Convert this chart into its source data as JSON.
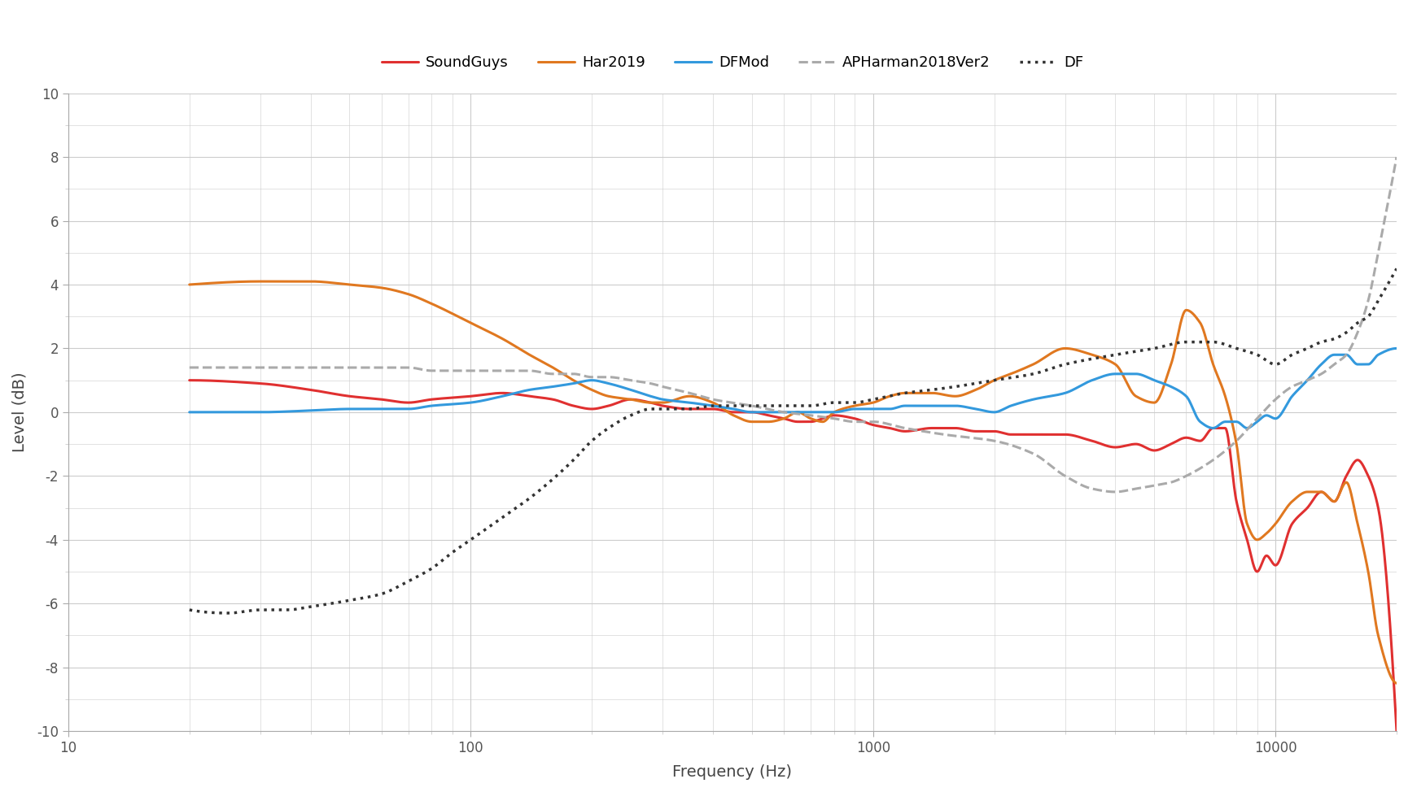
{
  "title": "",
  "xlabel": "Frequency (Hz)",
  "ylabel": "Level (dB)",
  "xlim": [
    10,
    20000
  ],
  "ylim": [
    -10,
    10
  ],
  "yticks": [
    -10,
    -8,
    -6,
    -4,
    -2,
    0,
    2,
    4,
    6,
    8,
    10
  ],
  "background_color": "#ffffff",
  "grid_color": "#cccccc",
  "SoundGuys": {
    "color": "#e03030",
    "linestyle": "-",
    "linewidth": 2.2,
    "freq": [
      20,
      30,
      40,
      50,
      60,
      70,
      80,
      100,
      120,
      140,
      160,
      180,
      200,
      220,
      250,
      280,
      300,
      350,
      400,
      450,
      500,
      550,
      600,
      650,
      700,
      750,
      800,
      900,
      1000,
      1100,
      1200,
      1400,
      1600,
      1800,
      2000,
      2200,
      2500,
      3000,
      3500,
      4000,
      4500,
      5000,
      5500,
      6000,
      6500,
      7000,
      7500,
      8000,
      8500,
      9000,
      9500,
      10000,
      11000,
      12000,
      13000,
      14000,
      15000,
      16000,
      17000,
      18000,
      20000
    ],
    "level": [
      1.0,
      0.9,
      0.7,
      0.5,
      0.4,
      0.3,
      0.4,
      0.5,
      0.6,
      0.5,
      0.4,
      0.2,
      0.1,
      0.2,
      0.4,
      0.3,
      0.2,
      0.1,
      0.1,
      0.0,
      0.0,
      -0.1,
      -0.2,
      -0.3,
      -0.3,
      -0.2,
      -0.1,
      -0.2,
      -0.4,
      -0.5,
      -0.6,
      -0.5,
      -0.5,
      -0.6,
      -0.6,
      -0.7,
      -0.7,
      -0.7,
      -0.9,
      -1.1,
      -1.0,
      -1.2,
      -1.0,
      -0.8,
      -0.9,
      -0.5,
      -0.5,
      -2.8,
      -4.0,
      -5.0,
      -4.5,
      -4.8,
      -3.5,
      -3.0,
      -2.5,
      -2.8,
      -2.0,
      -1.5,
      -2.0,
      -3.0,
      -10.0
    ]
  },
  "Har2019": {
    "color": "#e07820",
    "linestyle": "-",
    "linewidth": 2.2,
    "freq": [
      20,
      30,
      40,
      50,
      60,
      70,
      80,
      100,
      120,
      140,
      160,
      180,
      200,
      220,
      250,
      280,
      300,
      350,
      400,
      450,
      500,
      550,
      600,
      650,
      700,
      750,
      800,
      900,
      1000,
      1100,
      1200,
      1400,
      1600,
      1800,
      2000,
      2200,
      2500,
      3000,
      3500,
      4000,
      4500,
      5000,
      5500,
      6000,
      6500,
      7000,
      7500,
      8000,
      8500,
      9000,
      9500,
      10000,
      11000,
      12000,
      13000,
      14000,
      15000,
      16000,
      17000,
      18000,
      20000
    ],
    "level": [
      4.0,
      4.1,
      4.1,
      4.0,
      3.9,
      3.7,
      3.4,
      2.8,
      2.3,
      1.8,
      1.4,
      1.0,
      0.7,
      0.5,
      0.4,
      0.3,
      0.3,
      0.5,
      0.3,
      -0.1,
      -0.3,
      -0.3,
      -0.2,
      0.0,
      -0.2,
      -0.3,
      0.0,
      0.2,
      0.3,
      0.5,
      0.6,
      0.6,
      0.5,
      0.7,
      1.0,
      1.2,
      1.5,
      2.0,
      1.8,
      1.5,
      0.5,
      0.3,
      1.5,
      3.2,
      2.8,
      1.5,
      0.5,
      -1.0,
      -3.5,
      -4.0,
      -3.8,
      -3.5,
      -2.8,
      -2.5,
      -2.5,
      -2.8,
      -2.2,
      -3.5,
      -5.0,
      -7.0,
      -8.5
    ]
  },
  "DFMod": {
    "color": "#3399dd",
    "linestyle": "-",
    "linewidth": 2.2,
    "freq": [
      20,
      30,
      40,
      50,
      60,
      70,
      80,
      100,
      120,
      140,
      160,
      180,
      200,
      220,
      250,
      280,
      300,
      350,
      400,
      450,
      500,
      550,
      600,
      650,
      700,
      750,
      800,
      900,
      1000,
      1100,
      1200,
      1400,
      1600,
      1800,
      2000,
      2200,
      2500,
      3000,
      3500,
      4000,
      4500,
      5000,
      5500,
      6000,
      6500,
      7000,
      7500,
      8000,
      8500,
      9000,
      9500,
      10000,
      11000,
      12000,
      13000,
      14000,
      15000,
      16000,
      17000,
      18000,
      20000
    ],
    "level": [
      0.0,
      0.0,
      0.05,
      0.1,
      0.1,
      0.1,
      0.2,
      0.3,
      0.5,
      0.7,
      0.8,
      0.9,
      1.0,
      0.9,
      0.7,
      0.5,
      0.4,
      0.3,
      0.2,
      0.1,
      0.0,
      0.0,
      0.0,
      0.0,
      0.0,
      0.0,
      0.0,
      0.1,
      0.1,
      0.1,
      0.2,
      0.2,
      0.2,
      0.1,
      0.0,
      0.2,
      0.4,
      0.6,
      1.0,
      1.2,
      1.2,
      1.0,
      0.8,
      0.5,
      -0.3,
      -0.5,
      -0.3,
      -0.3,
      -0.5,
      -0.3,
      -0.1,
      -0.2,
      0.5,
      1.0,
      1.5,
      1.8,
      1.8,
      1.5,
      1.5,
      1.8,
      2.0
    ]
  },
  "APHarman2018Ver2": {
    "color": "#aaaaaa",
    "linestyle": "--",
    "linewidth": 2.2,
    "freq": [
      20,
      30,
      40,
      50,
      60,
      70,
      80,
      100,
      120,
      140,
      160,
      180,
      200,
      220,
      250,
      280,
      300,
      350,
      400,
      500,
      600,
      700,
      800,
      900,
      1000,
      1200,
      1500,
      2000,
      2500,
      3000,
      3500,
      4000,
      4500,
      5000,
      5500,
      6000,
      7000,
      8000,
      9000,
      10000,
      11000,
      12000,
      13000,
      14000,
      15000,
      16000,
      17000,
      18000,
      20000
    ],
    "level": [
      1.4,
      1.4,
      1.4,
      1.4,
      1.4,
      1.4,
      1.3,
      1.3,
      1.3,
      1.3,
      1.2,
      1.2,
      1.1,
      1.1,
      1.0,
      0.9,
      0.8,
      0.6,
      0.4,
      0.2,
      0.0,
      -0.1,
      -0.2,
      -0.3,
      -0.3,
      -0.5,
      -0.7,
      -0.9,
      -1.3,
      -2.0,
      -2.4,
      -2.5,
      -2.4,
      -2.3,
      -2.2,
      -2.0,
      -1.5,
      -0.9,
      -0.2,
      0.4,
      0.8,
      1.0,
      1.2,
      1.5,
      1.8,
      2.5,
      3.5,
      5.0,
      8.0
    ]
  },
  "DF": {
    "color": "#333333",
    "linestyle": ":",
    "linewidth": 2.5,
    "freq": [
      20,
      25,
      30,
      35,
      40,
      50,
      60,
      70,
      80,
      90,
      100,
      120,
      140,
      160,
      180,
      200,
      220,
      250,
      280,
      300,
      350,
      400,
      500,
      600,
      700,
      800,
      900,
      1000,
      1200,
      1400,
      1600,
      2000,
      2500,
      3000,
      4000,
      5000,
      6000,
      7000,
      8000,
      9000,
      10000,
      11000,
      12000,
      13000,
      14000,
      15000,
      16000,
      17000,
      18000,
      20000
    ],
    "level": [
      -6.2,
      -6.3,
      -6.2,
      -6.2,
      -6.1,
      -5.9,
      -5.7,
      -5.3,
      -4.9,
      -4.4,
      -4.0,
      -3.3,
      -2.7,
      -2.1,
      -1.5,
      -0.9,
      -0.5,
      -0.1,
      0.1,
      0.1,
      0.1,
      0.2,
      0.2,
      0.2,
      0.2,
      0.3,
      0.3,
      0.4,
      0.6,
      0.7,
      0.8,
      1.0,
      1.2,
      1.5,
      1.8,
      2.0,
      2.2,
      2.2,
      2.0,
      1.8,
      1.5,
      1.8,
      2.0,
      2.2,
      2.3,
      2.5,
      2.8,
      3.0,
      3.5,
      4.5
    ]
  }
}
